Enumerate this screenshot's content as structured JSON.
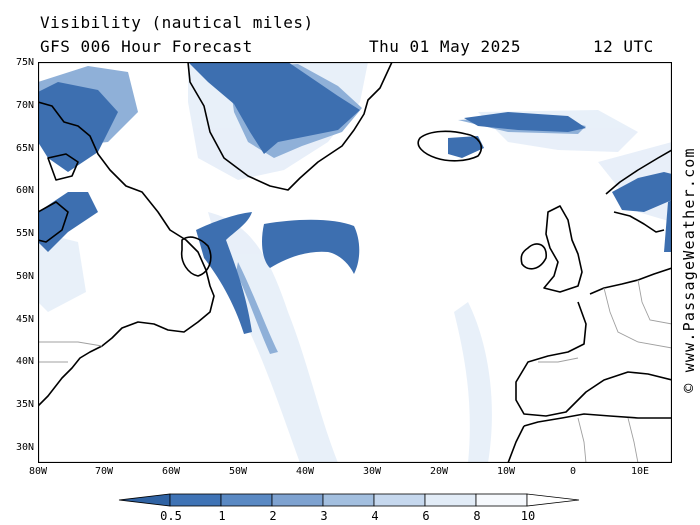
{
  "header": {
    "title": "Visibility (nautical miles)",
    "subtitle": "GFS 006 Hour Forecast",
    "datetime": "Thu 01 May 2025",
    "time": "12 UTC"
  },
  "axes": {
    "lat_labels": [
      "75N",
      "70N",
      "65N",
      "60N",
      "55N",
      "50N",
      "45N",
      "40N",
      "35N",
      "30N"
    ],
    "lon_labels": [
      "80W",
      "70W",
      "60W",
      "50W",
      "40W",
      "30W",
      "20W",
      "10W",
      "0",
      "10E"
    ]
  },
  "legend": {
    "labels": [
      "0.5",
      "1",
      "2",
      "3",
      "4",
      "6",
      "8",
      "10"
    ],
    "colors": [
      "#2f62a3",
      "#3f73b5",
      "#5a89c3",
      "#7ea2d0",
      "#a3bfdf",
      "#c6d8ee",
      "#e2ecf7",
      "#f6f9fd",
      "#ffffff"
    ]
  },
  "credit": "© www.PassageWeather.com",
  "style": {
    "land_line": "#000000",
    "border_line": "#a0a0a0",
    "low_vis": "#3d6fb0"
  }
}
